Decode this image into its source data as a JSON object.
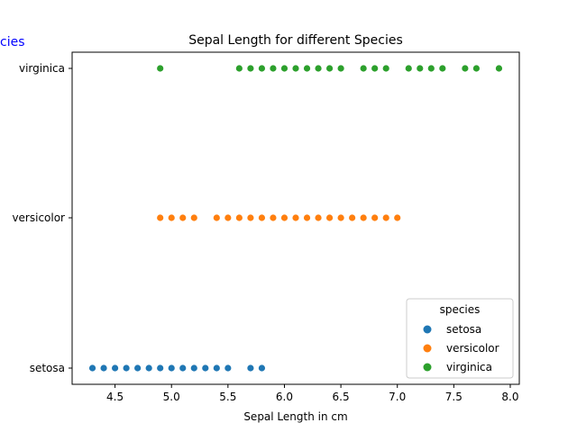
{
  "chart_data": {
    "type": "scatter",
    "title": "Sepal Length for different Species",
    "xlabel": "Sepal Length in cm",
    "ylabel": "Species",
    "xlim": [
      4.12,
      8.08
    ],
    "x_ticks": [
      "4.5",
      "5.0",
      "5.5",
      "6.0",
      "6.5",
      "7.0",
      "7.5",
      "8.0"
    ],
    "categories": [
      "setosa",
      "versicolor",
      "virginica"
    ],
    "grid": false,
    "legend": {
      "title": "species",
      "placement": "lower-right"
    },
    "series": [
      {
        "name": "setosa",
        "color": "#1f77b4",
        "x": [
          4.3,
          4.4,
          4.5,
          4.6,
          4.7,
          4.8,
          4.9,
          5.0,
          5.1,
          5.2,
          5.3,
          5.4,
          5.5,
          5.7,
          5.8
        ]
      },
      {
        "name": "versicolor",
        "color": "#ff7f0e",
        "x": [
          4.9,
          5.0,
          5.1,
          5.2,
          5.4,
          5.5,
          5.6,
          5.7,
          5.8,
          5.9,
          6.0,
          6.1,
          6.2,
          6.3,
          6.4,
          6.5,
          6.6,
          6.7,
          6.8,
          6.9,
          7.0
        ]
      },
      {
        "name": "virginica",
        "color": "#2ca02c",
        "x": [
          4.9,
          5.6,
          5.7,
          5.8,
          5.9,
          6.0,
          6.1,
          6.2,
          6.3,
          6.4,
          6.5,
          6.7,
          6.8,
          6.9,
          7.1,
          7.2,
          7.3,
          7.4,
          7.6,
          7.7,
          7.9
        ]
      }
    ]
  },
  "overflow_label": {
    "text": "cies",
    "color": "#0000ff"
  }
}
